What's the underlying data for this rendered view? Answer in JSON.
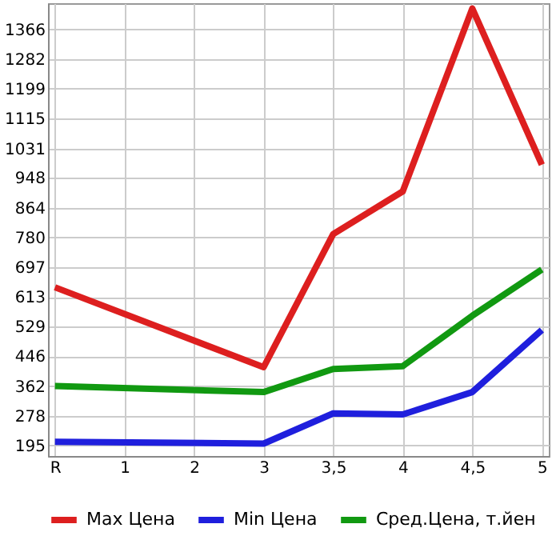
{
  "chart_data": {
    "type": "line",
    "categories": [
      "R",
      "1",
      "2",
      "3",
      "3,5",
      "4",
      "4,5",
      "5"
    ],
    "series": [
      {
        "name": "Max Цена",
        "color": "#dd1f1f",
        "values": [
          640,
          null,
          null,
          415,
          790,
          910,
          1425,
          985
        ]
      },
      {
        "name": "Min Цена",
        "color": "#1f1fdd",
        "values": [
          205,
          null,
          null,
          200,
          285,
          282,
          345,
          520
        ]
      },
      {
        "name": "Сред.Цена, т.йен",
        "color": "#119911",
        "values": [
          362,
          null,
          null,
          345,
          410,
          418,
          560,
          690
        ]
      }
    ],
    "ylim": [
      165,
      1440
    ],
    "yticks": [
      195,
      278,
      362,
      446,
      529,
      613,
      697,
      780,
      864,
      948,
      1031,
      1115,
      1199,
      1282,
      1366
    ],
    "grid": true,
    "legend": "bottom",
    "marker": "none",
    "line_style": "solid"
  }
}
